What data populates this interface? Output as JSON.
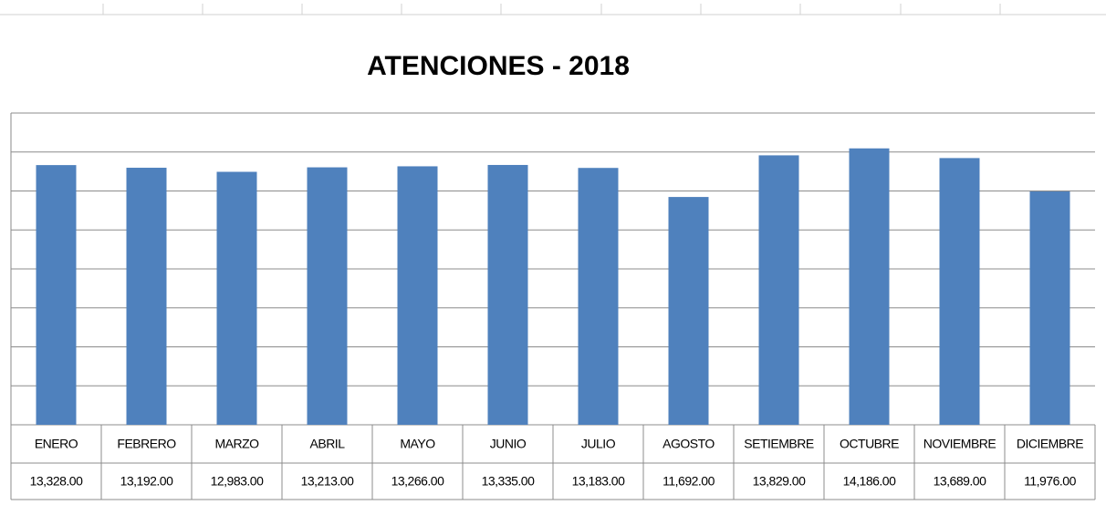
{
  "chart_data": {
    "type": "bar",
    "title": "ATENCIONES  - 2018",
    "categories": [
      "ENERO",
      "FEBRERO",
      "MARZO",
      "ABRIL",
      "MAYO",
      "JUNIO",
      "JULIO",
      "AGOSTO",
      "SETIEMBRE",
      "OCTUBRE",
      "NOVIEMBRE",
      "DICIEMBRE"
    ],
    "values": [
      13328,
      13192,
      12983,
      13213,
      13266,
      13335,
      13183,
      11692,
      13829,
      14186,
      13689,
      11976
    ],
    "value_labels": [
      "13,328.00",
      "13,192.00",
      "12,983.00",
      "13,213.00",
      "13,266.00",
      "13,335.00",
      "13,183.00",
      "11,692.00",
      "13,829.00",
      "14,186.00",
      "13,689.00",
      "11,976.00"
    ],
    "color": "#4f81bd",
    "ylim": [
      0,
      16000
    ],
    "yticks": [
      0,
      2000,
      4000,
      6000,
      8000,
      10000,
      12000,
      14000,
      16000
    ],
    "grid": true
  }
}
